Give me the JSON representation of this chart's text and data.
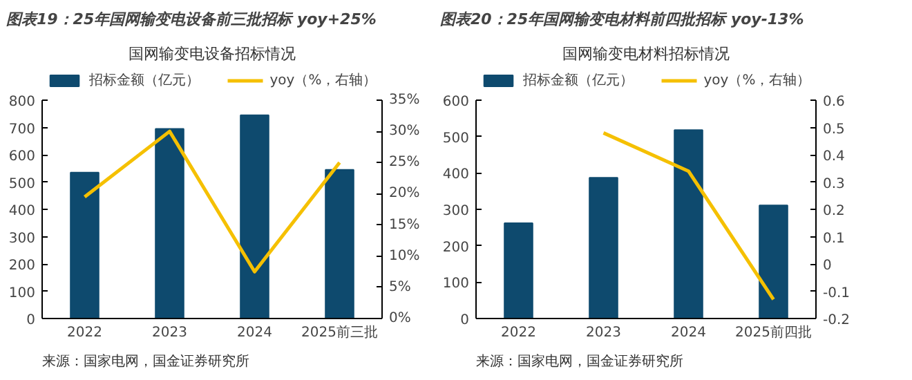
{
  "chart_data": [
    {
      "type": "bar",
      "title": "图表19：25年国网输变电设备前三批招标 yoy+25%",
      "subtitle": "国网输变电设备招标情况",
      "categories": [
        "2022",
        "2023",
        "2024",
        "2025前三批"
      ],
      "series": [
        {
          "name": "招标金额（亿元）",
          "color": "#0e4a6e",
          "values": [
            535,
            695,
            745,
            545
          ]
        },
        {
          "name": "yoy（%，右轴）",
          "type": "line",
          "axis": "y2",
          "color": "#f5c000",
          "values": [
            19.5,
            30,
            7.5,
            25
          ]
        }
      ],
      "ylim": [
        0,
        800
      ],
      "yticks": [
        0,
        100,
        200,
        300,
        400,
        500,
        600,
        700,
        800
      ],
      "y2lim": [
        0,
        35
      ],
      "y2ticks": [
        {
          "value": 0,
          "label": "0%"
        },
        {
          "value": 5,
          "label": "5%"
        },
        {
          "value": 10,
          "label": "10%"
        },
        {
          "value": 15,
          "label": "15%"
        },
        {
          "value": 20,
          "label": "20%"
        },
        {
          "value": 25,
          "label": "25%"
        },
        {
          "value": 30,
          "label": "30%"
        },
        {
          "value": 35,
          "label": "35%"
        }
      ],
      "legend": "top",
      "annotations": [
        "来源：国家电网，国金证券研究所"
      ]
    },
    {
      "type": "bar",
      "title": "图表20：25年国网输变电材料前四批招标 yoy-13%",
      "subtitle": "国网输变电材料招标情况",
      "categories": [
        "2022",
        "2023",
        "2024",
        "2025前四批"
      ],
      "series": [
        {
          "name": "招标金额（亿元）",
          "color": "#0e4a6e",
          "values": [
            262,
            387,
            518,
            311
          ]
        },
        {
          "name": "yoy（%，右轴）",
          "type": "line",
          "axis": "y2",
          "color": "#f5c000",
          "values": [
            null,
            0.48,
            0.34,
            -0.13
          ]
        }
      ],
      "ylim": [
        0,
        600
      ],
      "yticks": [
        0,
        100,
        200,
        300,
        400,
        500,
        600
      ],
      "y2lim": [
        -0.2,
        0.6
      ],
      "y2ticks": [
        -0.2,
        -0.1,
        {
          "value": 0,
          "label": "0"
        },
        0.1,
        0.2,
        0.3,
        0.4,
        0.5,
        0.6
      ],
      "legend": "top",
      "annotations": [
        "来源：国家电网，国金证券研究所"
      ]
    }
  ]
}
